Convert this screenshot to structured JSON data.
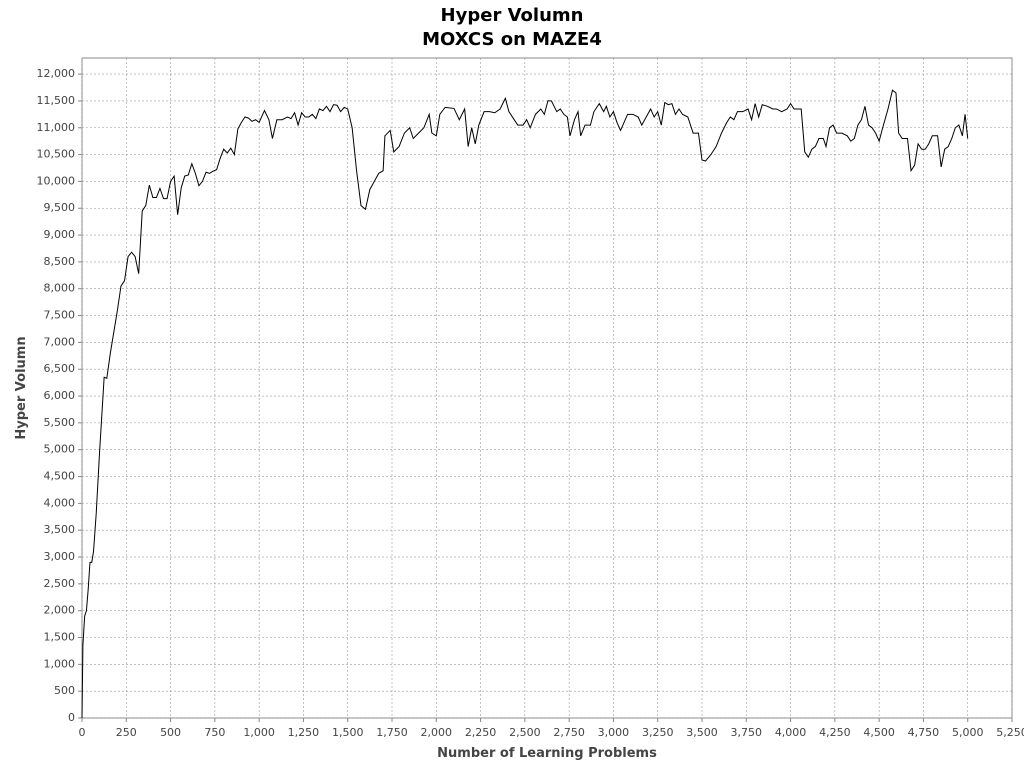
{
  "chart_data": {
    "type": "line",
    "title": "Hyper Volumn",
    "subtitle": "MOXCS on MAZE4",
    "x_label": "Number of Learning Problems",
    "y_label": "Hyper Volumn",
    "grid": true,
    "xlim": [
      0,
      5250
    ],
    "ylim": [
      0,
      12300
    ],
    "xticks": [
      0,
      250,
      500,
      750,
      {
        "value": 1000,
        "label": "1,000"
      },
      {
        "value": 1250,
        "label": "1,250"
      },
      {
        "value": 1500,
        "label": "1,500"
      },
      {
        "value": 1750,
        "label": "1,750"
      },
      {
        "value": 2000,
        "label": "2,000"
      },
      {
        "value": 2250,
        "label": "2,250"
      },
      {
        "value": 2500,
        "label": "2,500"
      },
      {
        "value": 2750,
        "label": "2,750"
      },
      {
        "value": 3000,
        "label": "3,000"
      },
      {
        "value": 3250,
        "label": "3,250"
      },
      {
        "value": 3500,
        "label": "3,500"
      },
      {
        "value": 3750,
        "label": "3,750"
      },
      {
        "value": 4000,
        "label": "4,000"
      },
      {
        "value": 4250,
        "label": "4,250"
      },
      {
        "value": 4500,
        "label": "4,500"
      },
      {
        "value": 4750,
        "label": "4,750"
      },
      {
        "value": 5000,
        "label": "5,000"
      },
      {
        "value": 5250,
        "label": "5,250"
      }
    ],
    "yticks": [
      0,
      500,
      {
        "value": 1000,
        "label": "1,000"
      },
      {
        "value": 1500,
        "label": "1,500"
      },
      {
        "value": 2000,
        "label": "2,000"
      },
      {
        "value": 2500,
        "label": "2,500"
      },
      {
        "value": 3000,
        "label": "3,000"
      },
      {
        "value": 3500,
        "label": "3,500"
      },
      {
        "value": 4000,
        "label": "4,000"
      },
      {
        "value": 4500,
        "label": "4,500"
      },
      {
        "value": 5000,
        "label": "5,000"
      },
      {
        "value": 5500,
        "label": "5,500"
      },
      {
        "value": 6000,
        "label": "6,000"
      },
      {
        "value": 6500,
        "label": "6,500"
      },
      {
        "value": 7000,
        "label": "7,000"
      },
      {
        "value": 7500,
        "label": "7,500"
      },
      {
        "value": 8000,
        "label": "8,000"
      },
      {
        "value": 8500,
        "label": "8,500"
      },
      {
        "value": 9000,
        "label": "9,000"
      },
      {
        "value": 9500,
        "label": "9,500"
      },
      {
        "value": 10000,
        "label": "10,000"
      },
      {
        "value": 10500,
        "label": "10,500"
      },
      {
        "value": 11000,
        "label": "11,000"
      },
      {
        "value": 11500,
        "label": "11,500"
      },
      {
        "value": 12000,
        "label": "12,000"
      }
    ],
    "series": [
      {
        "color": "#000000",
        "x": [
          0,
          5,
          15,
          25,
          35,
          45,
          55,
          65,
          80,
          100,
          125,
          140,
          160,
          185,
          200,
          220,
          240,
          260,
          280,
          300,
          320,
          340,
          360,
          380,
          400,
          420,
          440,
          460,
          480,
          500,
          520,
          540,
          560,
          580,
          600,
          620,
          640,
          660,
          680,
          700,
          720,
          740,
          760,
          780,
          800,
          820,
          840,
          860,
          880,
          900,
          920,
          940,
          960,
          980,
          1000,
          1030,
          1055,
          1075,
          1100,
          1130,
          1160,
          1180,
          1200,
          1220,
          1240,
          1260,
          1280,
          1300,
          1320,
          1340,
          1360,
          1380,
          1400,
          1420,
          1440,
          1460,
          1480,
          1500,
          1525,
          1550,
          1575,
          1600,
          1625,
          1650,
          1675,
          1700,
          1710,
          1740,
          1760,
          1790,
          1820,
          1850,
          1870,
          1900,
          1930,
          1960,
          1975,
          2000,
          2020,
          2050,
          2100,
          2130,
          2160,
          2180,
          2200,
          2220,
          2240,
          2270,
          2300,
          2330,
          2360,
          2390,
          2410,
          2440,
          2460,
          2490,
          2510,
          2530,
          2560,
          2590,
          2610,
          2630,
          2650,
          2680,
          2700,
          2720,
          2740,
          2755,
          2780,
          2800,
          2815,
          2840,
          2870,
          2890,
          2920,
          2945,
          2960,
          2980,
          3000,
          3020,
          3040,
          3060,
          3080,
          3110,
          3140,
          3160,
          3185,
          3210,
          3230,
          3250,
          3270,
          3290,
          3310,
          3330,
          3350,
          3370,
          3390,
          3420,
          3450,
          3480,
          3500,
          3520,
          3550,
          3580,
          3610,
          3640,
          3660,
          3680,
          3700,
          3730,
          3760,
          3780,
          3800,
          3820,
          3840,
          3870,
          3900,
          3920,
          3950,
          3980,
          4000,
          4020,
          4060,
          4080,
          4100,
          4120,
          4140,
          4160,
          4185,
          4200,
          4220,
          4240,
          4260,
          4290,
          4320,
          4340,
          4360,
          4380,
          4400,
          4420,
          4440,
          4460,
          4480,
          4500,
          4520,
          4550,
          4575,
          4595,
          4610,
          4630,
          4660,
          4680,
          4700,
          4720,
          4740,
          4760,
          4780,
          4800,
          4830,
          4850,
          4870,
          4890,
          4910,
          4930,
          4950,
          4970,
          4985,
          5000
        ],
        "values": [
          0,
          1350,
          1900,
          2000,
          2400,
          2900,
          2900,
          3100,
          3800,
          5000,
          6350,
          6330,
          6800,
          7300,
          7600,
          8050,
          8150,
          8600,
          8680,
          8600,
          8280,
          9450,
          9550,
          9930,
          9700,
          9700,
          9870,
          9680,
          9680,
          10000,
          10100,
          9380,
          9880,
          10100,
          10120,
          10330,
          10150,
          9920,
          10000,
          10170,
          10150,
          10190,
          10220,
          10430,
          10600,
          10530,
          10620,
          10500,
          10980,
          11100,
          11200,
          11180,
          11120,
          11150,
          11100,
          11320,
          11150,
          10800,
          11150,
          11150,
          11200,
          11170,
          11280,
          11050,
          11280,
          11200,
          11200,
          11250,
          11170,
          11350,
          11320,
          11400,
          11300,
          11430,
          11420,
          11300,
          11380,
          11350,
          11000,
          10200,
          9550,
          9480,
          9850,
          10000,
          10150,
          10200,
          10850,
          10950,
          10550,
          10650,
          10900,
          11000,
          10800,
          10900,
          11000,
          11250,
          10900,
          10850,
          11250,
          11380,
          11360,
          11150,
          11350,
          10650,
          11000,
          10700,
          11050,
          11300,
          11300,
          11280,
          11350,
          11550,
          11300,
          11150,
          11050,
          11050,
          11150,
          11000,
          11250,
          11350,
          11250,
          11500,
          11500,
          11300,
          11350,
          11250,
          11200,
          10850,
          11150,
          11300,
          10850,
          11050,
          11050,
          11300,
          11450,
          11300,
          11400,
          11200,
          11300,
          11100,
          10950,
          11100,
          11250,
          11250,
          11200,
          11050,
          11200,
          11350,
          11200,
          11300,
          11050,
          11470,
          11430,
          11450,
          11250,
          11350,
          11250,
          11200,
          10900,
          10900,
          10400,
          10380,
          10500,
          10650,
          10900,
          11100,
          11200,
          11150,
          11300,
          11300,
          11350,
          11150,
          11450,
          11200,
          11430,
          11400,
          11350,
          11350,
          11300,
          11350,
          11450,
          11350,
          11350,
          10550,
          10450,
          10600,
          10650,
          10800,
          10800,
          10650,
          11000,
          11050,
          10900,
          10900,
          10850,
          10750,
          10800,
          11050,
          11150,
          11400,
          11050,
          11000,
          10900,
          10750,
          11000,
          11350,
          11700,
          11650,
          10900,
          10800,
          10800,
          10200,
          10300,
          10700,
          10600,
          10600,
          10700,
          10850,
          10850,
          10270,
          10600,
          10650,
          10800,
          11000,
          11050,
          10850,
          11250,
          10800
        ]
      }
    ]
  }
}
